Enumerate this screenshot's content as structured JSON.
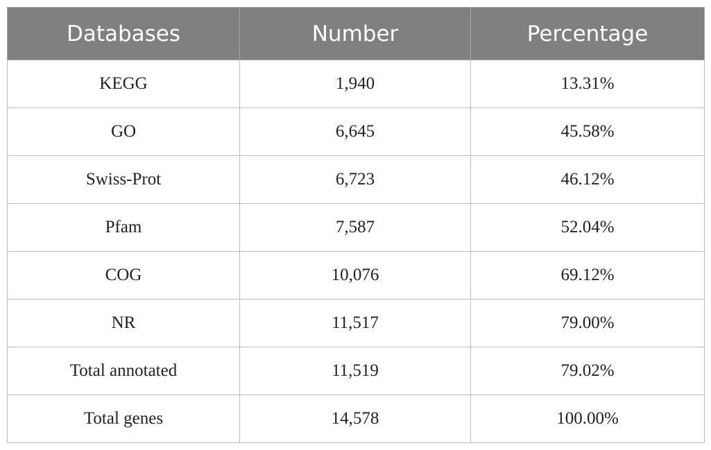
{
  "table": {
    "header": [
      "Databases",
      "Number",
      "Percentage"
    ],
    "rows": [
      [
        "KEGG",
        "1,940",
        "13.31%"
      ],
      [
        "GO",
        "6,645",
        "45.58%"
      ],
      [
        "Swiss-Prot",
        "6,723",
        "46.12%"
      ],
      [
        "Pfam",
        "7,587",
        "52.04%"
      ],
      [
        "COG",
        "10,076",
        "69.12%"
      ],
      [
        "NR",
        "11,517",
        "79.00%"
      ],
      [
        "Total annotated",
        "11,519",
        "79.02%"
      ],
      [
        "Total genes",
        "14,578",
        "100.00%"
      ]
    ]
  }
}
